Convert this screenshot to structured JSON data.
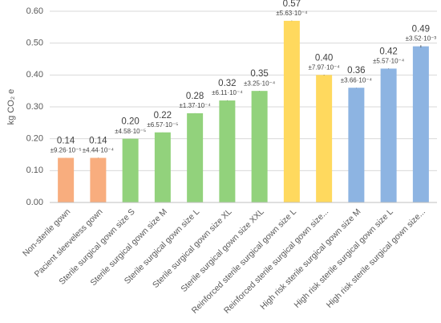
{
  "chart_data": {
    "type": "bar",
    "y_label": "kg CO₂ e",
    "categories": [
      "Non-sterile gown",
      "Pacient sleeveless gown",
      "Sterile surgical gown size S",
      "Sterile surgical gown size M",
      "Sterile surgical gown size L",
      "Sterile surgical gown size XL",
      "Sterile surgical gown size XXL",
      "Reinforced sterile surgical gown size L",
      "Reinforced sterile surgical gown size...",
      "High risk sterile surgical gown size M",
      "High risk sterile surgical gown size L",
      "High risk sterile surgical gown size..."
    ],
    "values": [
      0.14,
      0.14,
      0.2,
      0.22,
      0.28,
      0.32,
      0.35,
      0.57,
      0.4,
      0.36,
      0.42,
      0.49
    ],
    "value_labels": [
      "0.14",
      "0.14",
      "0.20",
      "0.22",
      "0.28",
      "0.32",
      "0.35",
      "0.57",
      "0.40",
      "0.36",
      "0.42",
      "0.49"
    ],
    "errors": [
      9.26e-05,
      0.000444,
      4.58e-05,
      6.57e-05,
      0.000137,
      0.000611,
      0.000325,
      0.000563,
      0.000797,
      0.000366,
      0.000557,
      0.00352
    ],
    "error_labels": [
      "±9.26·10⁻⁵",
      "±4.44·10⁻⁴",
      "±4.58·10⁻⁵",
      "±6.57·10⁻⁵",
      "±1.37·10⁻⁴",
      "±6.11·10⁻⁴",
      "±3.25·10⁻⁴",
      "±5.63·10⁻⁴",
      "±7.97·10⁻⁴",
      "±3.66·10⁻⁴",
      "±5.57·10⁻⁴",
      "±3.52·10⁻³"
    ],
    "colors": [
      "#f8ad7e",
      "#f8ad7e",
      "#92d27c",
      "#92d27c",
      "#92d27c",
      "#92d27c",
      "#92d27c",
      "#ffd95e",
      "#ffd95e",
      "#8db4e2",
      "#8db4e2",
      "#8db4e2"
    ],
    "ylim": [
      0,
      0.6
    ],
    "yticks": [
      {
        "value": 0,
        "label": "0.00"
      },
      {
        "value": 0.1,
        "label": "0.10"
      },
      {
        "value": 0.2,
        "label": "0.20"
      },
      {
        "value": 0.3,
        "label": "0.30"
      },
      {
        "value": 0.4,
        "label": "0.40"
      },
      {
        "value": 0.5,
        "label": "0.50"
      },
      {
        "value": 0.6,
        "label": "0.60"
      }
    ],
    "grid": true
  }
}
